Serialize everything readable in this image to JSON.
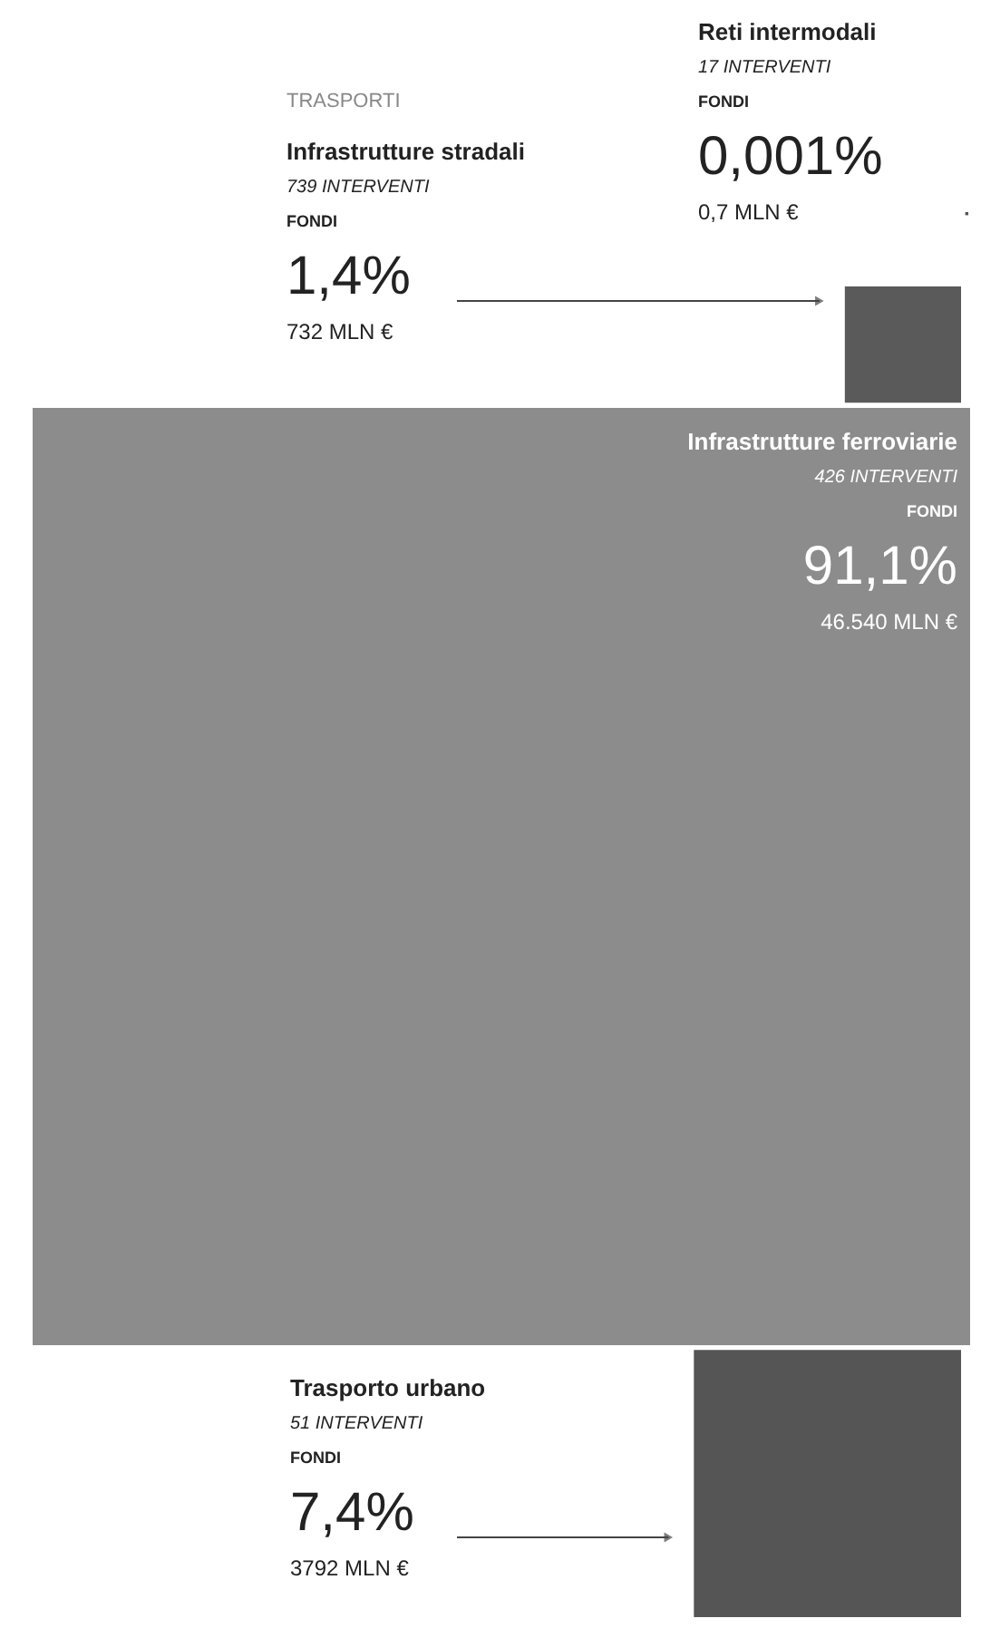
{
  "chart_data": {
    "type": "other",
    "title": "TRASPORTI",
    "categories": [
      "Reti intermodali",
      "Infrastrutture stradali",
      "Infrastrutture ferroviarie",
      "Trasporto urbano"
    ],
    "values": [
      0.001,
      1.4,
      91.1,
      7.4
    ],
    "value_labels": [
      "0,001%",
      "1,4%",
      "91,1%",
      "7,4%"
    ],
    "colors": [
      "#555555",
      "#5a5a5a",
      "#8c8c8c",
      "#555555"
    ],
    "annotations": [
      "17 INTERVENTI",
      "FONDI",
      "0,7 MLN €",
      "739 INTERVENTI",
      "FONDI",
      "732 MLN €",
      "426 INTERVENTI",
      "FONDI",
      "46.540 MLN €",
      "51 INTERVENTI",
      "FONDI",
      "3792 MLN €"
    ]
  }
}
